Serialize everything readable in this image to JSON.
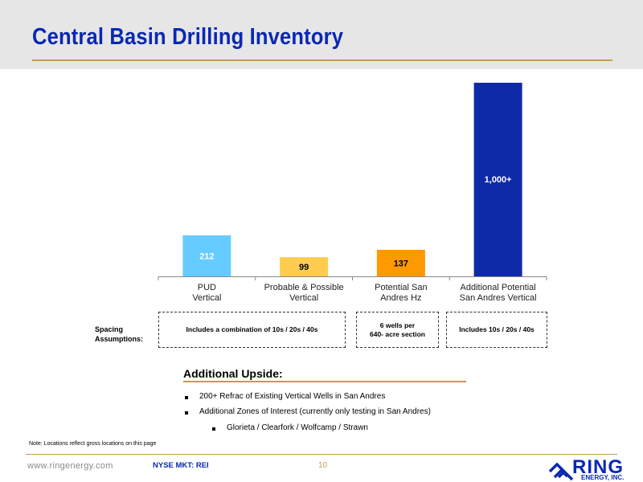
{
  "header": {
    "title": "Central Basin Drilling Inventory"
  },
  "chart_data": {
    "type": "bar",
    "categories": [
      [
        "PUD",
        "Vertical"
      ],
      [
        "Probable & Possible",
        "Vertical"
      ],
      [
        "Potential San",
        "Andres Hz"
      ],
      [
        "Additional Potential",
        "San Andres Vertical"
      ]
    ],
    "values": [
      212,
      99,
      137,
      1000
    ],
    "data_labels": [
      "212",
      "99",
      "137",
      "1,000+"
    ],
    "colors": [
      "#66ccff",
      "#ffcc4d",
      "#ff9900",
      "#0f2aa8"
    ],
    "label_colors": [
      "#ffffff",
      "#000000",
      "#000000",
      "#ffffff"
    ],
    "title": "",
    "xlabel": "",
    "ylabel": "",
    "ylim": [
      0,
      1000
    ],
    "grid": false,
    "legend": "none"
  },
  "spacing": {
    "label": "Spacing Assumptions:",
    "boxes": [
      "Includes a combination of 10s / 20s / 40s",
      "6 wells per\n640- acre section",
      "Includes 10s / 20s / 40s"
    ]
  },
  "upside": {
    "title": "Additional Upside:",
    "bullets": [
      "200+ Refrac of Existing Vertical  Wells in San Andres",
      "Additional Zones of Interest (currently only testing in San Andres)",
      "Glorieta / Clearfork / Wolfcamp / Strawn"
    ]
  },
  "note": "Note: Locations reflect gross locations on this page",
  "footer": {
    "url": "www.ringenergy.com",
    "ticker": "NYSE MKT: REI",
    "page": "10",
    "logo_main": "RING",
    "logo_sub": "ENERGY, INC."
  }
}
